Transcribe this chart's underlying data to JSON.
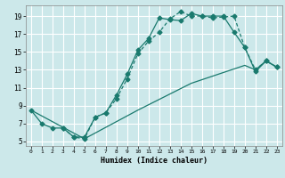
{
  "xlabel": "Humidex (Indice chaleur)",
  "bg_color": "#cce8ea",
  "grid_color": "#ffffff",
  "line_color": "#1a7a6e",
  "xlim": [
    -0.5,
    23.5
  ],
  "ylim": [
    4.5,
    20.2
  ],
  "xticks": [
    0,
    1,
    2,
    3,
    4,
    5,
    6,
    7,
    8,
    9,
    10,
    11,
    12,
    13,
    14,
    15,
    16,
    17,
    18,
    19,
    20,
    21,
    22,
    23
  ],
  "yticks": [
    5,
    7,
    9,
    11,
    13,
    15,
    17,
    19
  ],
  "line1_x": [
    0,
    1,
    2,
    3,
    4,
    5,
    6,
    7,
    8,
    9,
    10,
    11,
    12,
    13,
    14,
    15,
    16,
    17,
    18,
    19,
    20,
    21,
    22,
    23
  ],
  "line1_y": [
    8.5,
    7.0,
    6.5,
    6.5,
    5.5,
    5.5,
    7.7,
    8.2,
    10.2,
    12.5,
    15.2,
    16.5,
    18.8,
    18.6,
    18.5,
    19.3,
    19.0,
    19.0,
    19.0,
    17.2,
    15.5,
    12.8,
    14.0,
    13.3
  ],
  "line2_x": [
    3,
    4,
    5,
    6,
    7,
    8,
    9,
    10,
    11,
    12,
    13,
    14,
    15,
    16,
    17,
    18,
    19,
    20,
    21,
    22,
    23
  ],
  "line2_y": [
    6.5,
    5.5,
    5.3,
    7.7,
    8.2,
    9.8,
    12.0,
    14.8,
    16.2,
    17.2,
    18.7,
    19.5,
    19.0,
    19.0,
    18.8,
    18.9,
    19.0,
    15.5,
    13.0,
    14.0,
    13.3
  ],
  "line3_x": [
    0,
    5,
    10,
    15,
    20,
    21,
    22,
    23
  ],
  "line3_y": [
    8.5,
    5.3,
    8.5,
    11.5,
    13.5,
    13.0,
    14.0,
    13.3
  ],
  "marker_size": 2.5,
  "linewidth": 0.9
}
